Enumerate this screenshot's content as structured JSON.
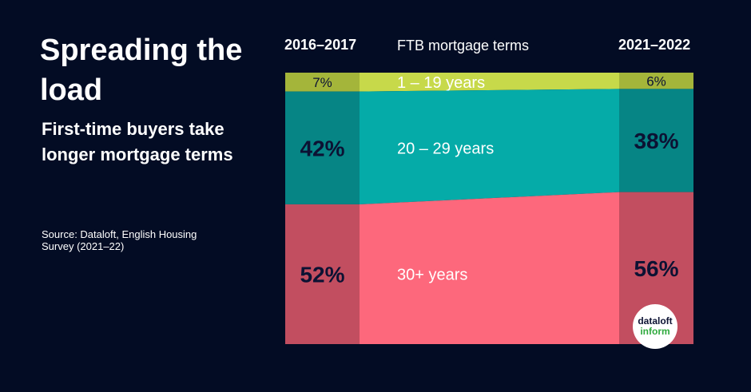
{
  "title": "Spreading the load",
  "subtitle": "First-time buyers take longer mortgage terms",
  "source": "Source: Dataloft, English Housing Survey (2021–22)",
  "logo": {
    "line1": "dataloft",
    "line2": "inform"
  },
  "chart_data": {
    "type": "area",
    "title": "FTB mortgage terms",
    "periods": [
      "2016–2017",
      "2021–2022"
    ],
    "series": [
      {
        "name": "1 – 19 years",
        "values": [
          7,
          6
        ],
        "labels": [
          "7%",
          "6%"
        ],
        "color": "#c7d94a",
        "edge_color": "#a4b53a"
      },
      {
        "name": "20 – 29 years",
        "values": [
          42,
          38
        ],
        "labels": [
          "42%",
          "38%"
        ],
        "color": "#05aba8",
        "edge_color": "#068585"
      },
      {
        "name": "30+ years",
        "values": [
          52,
          56
        ],
        "labels": [
          "52%",
          "56%"
        ],
        "color": "#fd687c",
        "edge_color": "#c24e60"
      }
    ]
  }
}
